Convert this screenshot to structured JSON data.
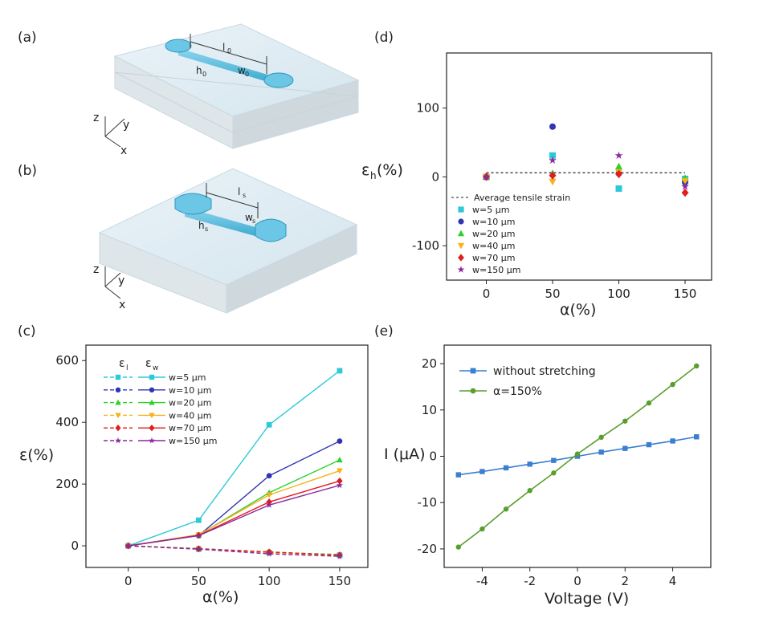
{
  "panels": {
    "a": "(a)",
    "b": "(b)",
    "c": "(c)",
    "d": "(d)",
    "e": "(e)"
  },
  "schematic_a": {
    "l": "l",
    "l_sub": "0",
    "w": "w",
    "w_sub": "0",
    "h": "h",
    "h_sub": "0",
    "axes": {
      "z": "z",
      "y": "y",
      "x": "x"
    }
  },
  "schematic_b": {
    "l": "l",
    "l_sub": "s",
    "w": "w",
    "w_sub": "s",
    "h": "h",
    "h_sub": "s",
    "axes": {
      "z": "z",
      "y": "y",
      "x": "x"
    }
  },
  "colors": {
    "w5": "#2ec9d9",
    "w10": "#2f36b0",
    "w20": "#2fd02f",
    "w40": "#f5b21a",
    "w70": "#e21d1d",
    "w150": "#8a2a9e",
    "blue": "#3a7fd0",
    "green": "#5a9e2c"
  },
  "chart_data": [
    {
      "panel": "c",
      "type": "line",
      "xlabel": "α(%)",
      "ylabel": "ε(%)",
      "xlim": [
        -30,
        170
      ],
      "ylim": [
        -70,
        650
      ],
      "xticks": [
        "0",
        "50",
        "100",
        "150"
      ],
      "yticks": [
        "0",
        "200",
        "400",
        "600"
      ],
      "legend_headers": {
        "l": "ε",
        "l_sub": "l",
        "w": "ε",
        "w_sub": "w"
      },
      "x": [
        0,
        50,
        100,
        150
      ],
      "series": [
        {
          "name": "w=5 μm",
          "color_key": "w5",
          "marker": "square",
          "eps_w": [
            0,
            83,
            392,
            567
          ],
          "eps_l": [
            0,
            -10,
            -22,
            -30
          ]
        },
        {
          "name": "w=10 μm",
          "color_key": "w10",
          "marker": "circle",
          "eps_w": [
            0,
            33,
            227,
            339
          ],
          "eps_l": [
            0,
            -9,
            -20,
            -30
          ]
        },
        {
          "name": "w=20 μm",
          "color_key": "w20",
          "marker": "triangle",
          "eps_w": [
            0,
            35,
            172,
            278
          ],
          "eps_l": [
            0,
            -9,
            -21,
            -28
          ]
        },
        {
          "name": "w=40 μm",
          "color_key": "w40",
          "marker": "tri-down",
          "eps_w": [
            0,
            36,
            165,
            243
          ],
          "eps_l": [
            0,
            -10,
            -22,
            -32
          ]
        },
        {
          "name": "w=70 μm",
          "color_key": "w70",
          "marker": "diamond",
          "eps_w": [
            0,
            34,
            142,
            210
          ],
          "eps_l": [
            0,
            -10,
            -20,
            -30
          ]
        },
        {
          "name": "w=150 μm",
          "color_key": "w150",
          "marker": "star",
          "eps_w": [
            0,
            33,
            132,
            196
          ],
          "eps_l": [
            0,
            -11,
            -26,
            -34
          ]
        }
      ]
    },
    {
      "panel": "d",
      "type": "scatter",
      "xlabel": "α(%)",
      "ylabel": "ε",
      "ylabel_sub": "h",
      "ylabel_suffix": "(%)",
      "xlim": [
        -30,
        170
      ],
      "ylim": [
        -150,
        180
      ],
      "xticks": [
        "0",
        "50",
        "100",
        "150"
      ],
      "yticks": [
        "100",
        "0",
        "-100"
      ],
      "reference_line": {
        "label": "Average tensile strain",
        "y": 6
      },
      "series": [
        {
          "name": "w=5 μm",
          "color_key": "w5",
          "marker": "square",
          "x": [
            0,
            50,
            100,
            150
          ],
          "y": [
            0,
            31,
            -17,
            -3
          ]
        },
        {
          "name": "w=10 μm",
          "color_key": "w10",
          "marker": "circle",
          "x": [
            0,
            50,
            100,
            150
          ],
          "y": [
            0,
            73,
            5,
            -8
          ]
        },
        {
          "name": "w=20 μm",
          "color_key": "w20",
          "marker": "triangle",
          "x": [
            0,
            50,
            100,
            150
          ],
          "y": [
            0,
            5,
            15,
            -2
          ]
        },
        {
          "name": "w=40 μm",
          "color_key": "w40",
          "marker": "tri-down",
          "x": [
            0,
            50,
            100,
            150
          ],
          "y": [
            0,
            -7,
            7,
            -6
          ]
        },
        {
          "name": "w=70 μm",
          "color_key": "w70",
          "marker": "diamond",
          "x": [
            0,
            50,
            100,
            150
          ],
          "y": [
            0,
            2,
            4,
            -23
          ]
        },
        {
          "name": "w=150 μm",
          "color_key": "w150",
          "marker": "star",
          "x": [
            0,
            50,
            100,
            150
          ],
          "y": [
            0,
            24,
            31,
            -14
          ]
        }
      ]
    },
    {
      "panel": "e",
      "type": "line",
      "xlabel": "Voltage (V)",
      "ylabel": "I (μA)",
      "xlim": [
        -5.6,
        5.6
      ],
      "ylim": [
        -24,
        24
      ],
      "xticks": [
        "-4",
        "-2",
        "0",
        "2",
        "4"
      ],
      "yticks": [
        "20",
        "10",
        "0",
        "-10",
        "-20"
      ],
      "x": [
        -5,
        -4,
        -3,
        -2,
        -1,
        0,
        1,
        2,
        3,
        4,
        5
      ],
      "series": [
        {
          "name": "without stretching",
          "color_key": "blue",
          "marker": "square",
          "values": [
            -4.0,
            -3.3,
            -2.5,
            -1.7,
            -0.9,
            0,
            0.9,
            1.7,
            2.5,
            3.3,
            4.2
          ]
        },
        {
          "name": "α=150%",
          "color_key": "green",
          "marker": "circle",
          "values": [
            -19.6,
            -15.7,
            -11.4,
            -7.4,
            -3.6,
            0.5,
            4.1,
            7.6,
            11.5,
            15.5,
            19.5
          ]
        }
      ]
    }
  ]
}
